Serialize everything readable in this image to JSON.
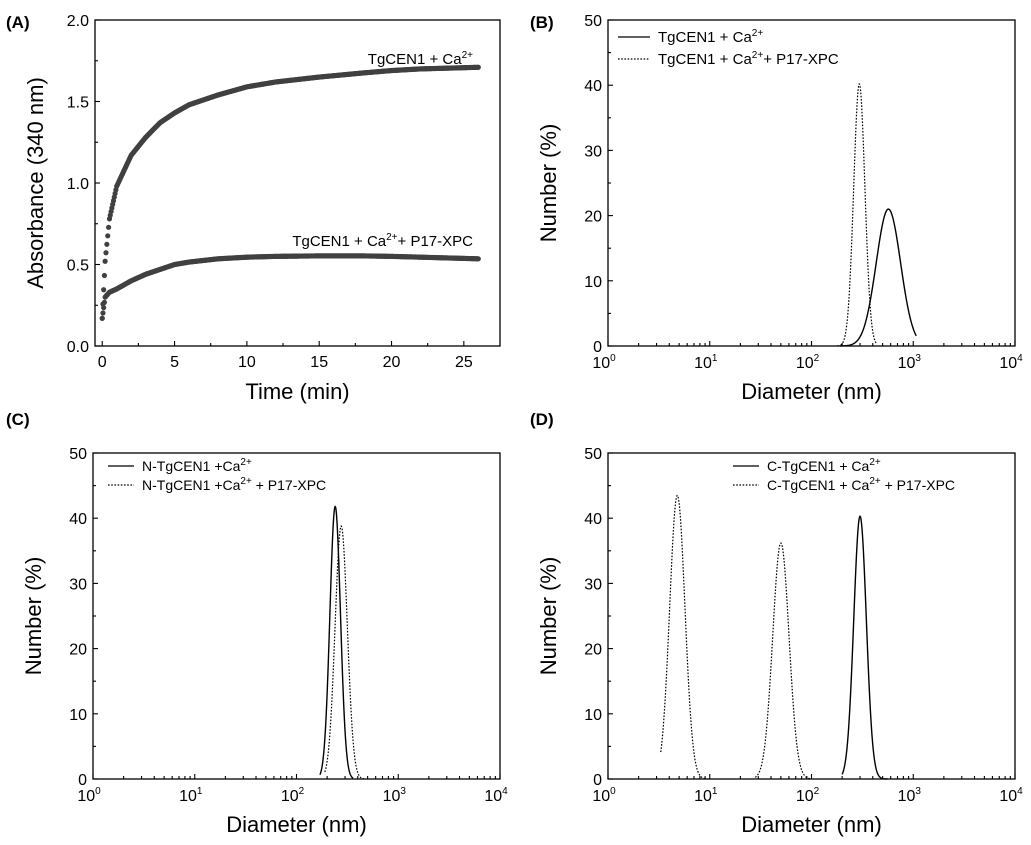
{
  "chart_data": [
    {
      "panel": "(A)",
      "type": "scatter",
      "xlabel": "Time (min)",
      "ylabel": "Absorbance (340 nm)",
      "xlim": [
        -0.5,
        27.5
      ],
      "ylim": [
        0,
        2.0
      ],
      "xticks": [
        0,
        5,
        10,
        15,
        20,
        25
      ],
      "yticks": [
        0.0,
        0.5,
        1.0,
        1.5,
        2.0
      ],
      "ytick_labels": [
        "0.0",
        "0.5",
        "1.0",
        "1.5",
        "2.0"
      ],
      "marker_color": "#404040",
      "series": [
        {
          "name": "TgCEN1 + Ca2+",
          "label_base": "TgCEN1 + Ca",
          "label_sup": "2+",
          "label_after": "",
          "x": [
            0,
            0.2,
            0.5,
            1,
            2,
            3,
            4,
            5,
            6,
            8,
            10,
            12,
            15,
            18,
            20,
            22,
            24,
            26
          ],
          "y": [
            0.17,
            0.52,
            0.78,
            0.98,
            1.17,
            1.28,
            1.37,
            1.43,
            1.48,
            1.54,
            1.59,
            1.62,
            1.65,
            1.675,
            1.69,
            1.7,
            1.705,
            1.71
          ]
        },
        {
          "name": "TgCEN1 + Ca2+ + P17-XPC",
          "label_base": "TgCEN1 + Ca",
          "label_sup": "2+",
          "label_after": "+ P17-XPC",
          "x": [
            0,
            0.2,
            0.5,
            1,
            2,
            3,
            4,
            5,
            6,
            8,
            10,
            12,
            15,
            18,
            20,
            22,
            24,
            26
          ],
          "y": [
            0.17,
            0.3,
            0.33,
            0.35,
            0.4,
            0.44,
            0.47,
            0.5,
            0.515,
            0.535,
            0.545,
            0.55,
            0.553,
            0.553,
            0.55,
            0.545,
            0.54,
            0.535
          ]
        }
      ]
    },
    {
      "panel": "(B)",
      "type": "line",
      "xscale": "log",
      "xlabel": "Diameter (nm)",
      "ylabel": "Number (%)",
      "xlim": [
        1,
        10000
      ],
      "ylim": [
        0,
        50
      ],
      "yticks": [
        0,
        10,
        20,
        30,
        40,
        50
      ],
      "legend": "top-left",
      "series": [
        {
          "name": "TgCEN1 + Ca2+",
          "label_base": "TgCEN1 + Ca",
          "label_sup": "2+",
          "label_after": "",
          "style": "solid",
          "peak_x": 570,
          "peak_y": 21,
          "log_sigma": 0.12,
          "x_range": [
            190,
            1070
          ]
        },
        {
          "name": "TgCEN1 + Ca2+ + P17-XPC",
          "label_base": "TgCEN1 + Ca",
          "label_sup": "2+",
          "label_after": "+ P17-XPC",
          "style": "dotted",
          "peak_x": 295,
          "peak_y": 40.2,
          "log_sigma": 0.055,
          "x_range": [
            180,
            440
          ]
        }
      ]
    },
    {
      "panel": "(C)",
      "type": "line",
      "xscale": "log",
      "xlabel": "Diameter (nm)",
      "ylabel": "Number (%)",
      "xlim": [
        1,
        10000
      ],
      "ylim": [
        0,
        50
      ],
      "yticks": [
        0,
        10,
        20,
        30,
        40,
        50
      ],
      "legend": "top-left",
      "series": [
        {
          "name": "N-TgCEN1 +Ca2+",
          "label_base": "N-TgCEN1 +Ca",
          "label_sup": "2+",
          "label_after": "",
          "style": "solid",
          "peak_x": 240,
          "peak_y": 41.8,
          "log_sigma": 0.052,
          "x_range": [
            170,
            360
          ]
        },
        {
          "name": "N-TgCEN1 +Ca2+ + P17-XPC",
          "label_base": "N-TgCEN1 +Ca",
          "label_sup": "2+",
          "label_after": " + P17-XPC",
          "style": "dotted",
          "peak_x": 275,
          "peak_y": 38.8,
          "log_sigma": 0.06,
          "x_range": [
            190,
            460
          ]
        }
      ]
    },
    {
      "panel": "(D)",
      "type": "line",
      "xscale": "log",
      "xlabel": "Diameter (nm)",
      "ylabel": "Number (%)",
      "xlim": [
        1,
        10000
      ],
      "ylim": [
        0,
        50
      ],
      "yticks": [
        0,
        10,
        20,
        30,
        40,
        50
      ],
      "legend": "top-center",
      "series": [
        {
          "name": "C-TgCEN1 + Ca2+",
          "label_base": "C-TgCEN1 + Ca",
          "label_sup": "2+",
          "label_after": "",
          "style": "solid",
          "peak_x": 300,
          "peak_y": 40.3,
          "log_sigma": 0.062,
          "x_range": [
            200,
            560
          ]
        },
        {
          "name": "C-TgCEN1 + Ca2+ + P17-XPC (peak 1)",
          "label_base": "C-TgCEN1 + Ca",
          "label_sup": "2+",
          "label_after": " + P17-XPC",
          "style": "dotted",
          "peak_x": 4.8,
          "peak_y": 43.5,
          "log_sigma": 0.075,
          "x_range": [
            3.3,
            9.5
          ]
        },
        {
          "name": "C-TgCEN1 + Ca2+ + P17-XPC (peak 2)",
          "label_base": "",
          "label_sup": "",
          "label_after": "",
          "style": "dotted",
          "peak_x": 50,
          "peak_y": 36.2,
          "log_sigma": 0.08,
          "x_range": [
            28,
            100
          ]
        }
      ]
    }
  ],
  "common": {
    "log_tick_base": "10",
    "log_tick_exponents": [
      "0",
      "1",
      "2",
      "3",
      "4"
    ]
  }
}
